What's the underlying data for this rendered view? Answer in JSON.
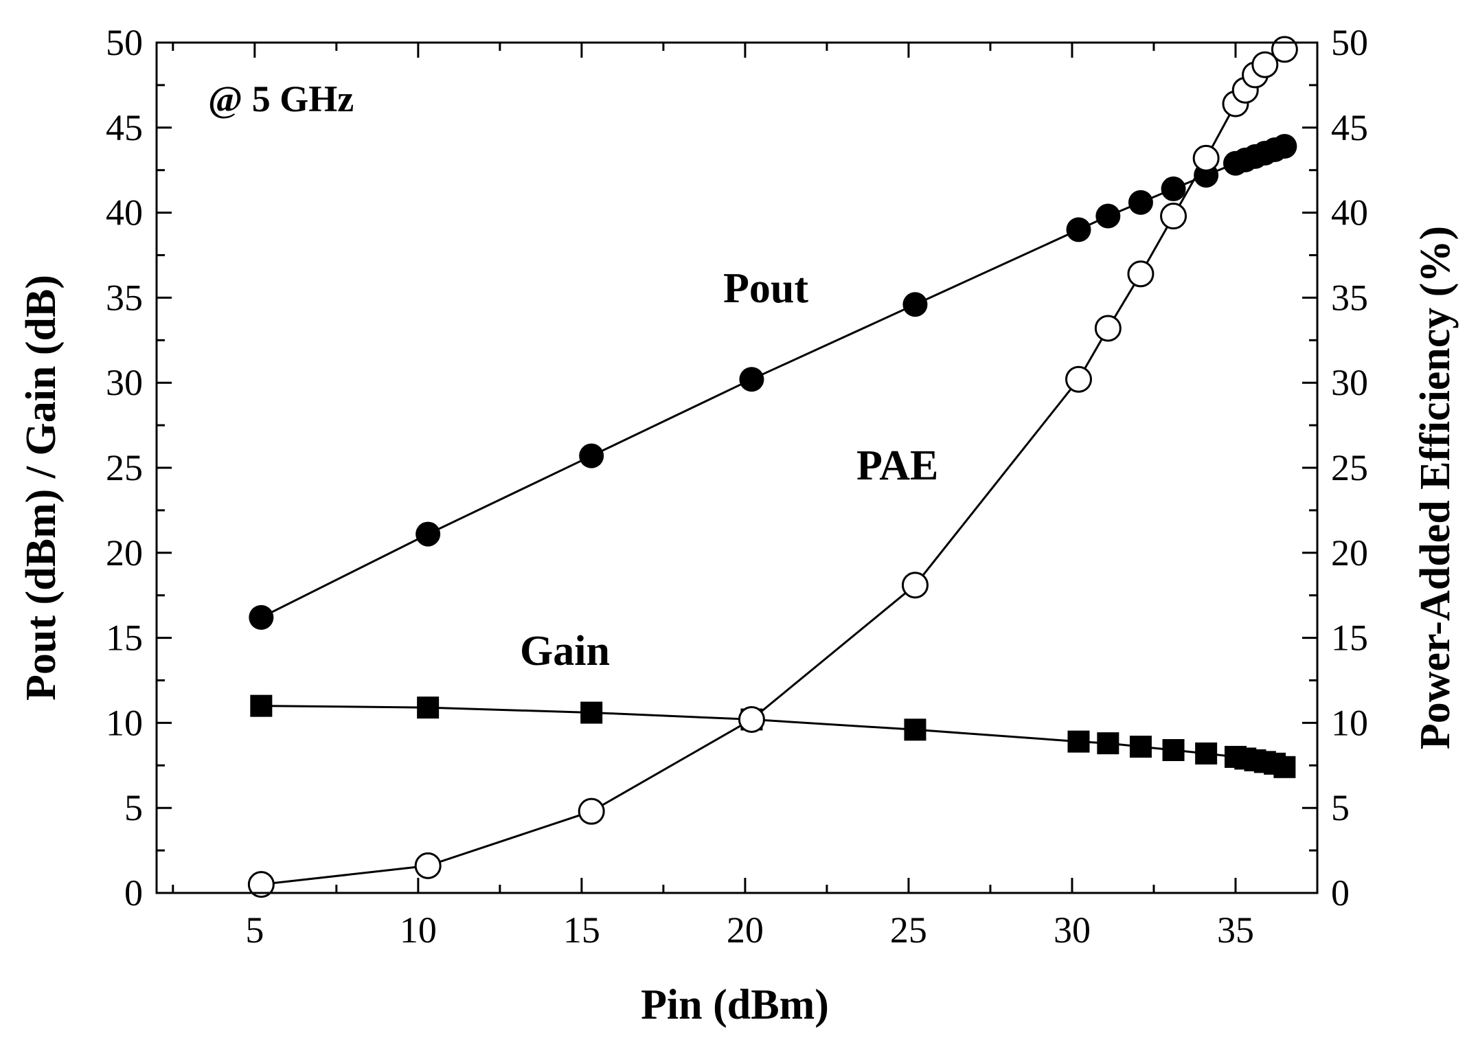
{
  "chart_data": {
    "type": "line",
    "title": "",
    "annotation": "@ 5 GHz",
    "xlabel": "Pin (dBm)",
    "ylabel": "Pout (dBm) / Gain (dB)",
    "y2label": "Power-Added Efficiency (%)",
    "xlim": [
      2,
      37.5
    ],
    "ylim": [
      0,
      50
    ],
    "y2lim": [
      0,
      50
    ],
    "xticks": [
      5,
      10,
      15,
      20,
      25,
      30,
      35
    ],
    "yticks": [
      0,
      5,
      10,
      15,
      20,
      25,
      30,
      35,
      40,
      45,
      50
    ],
    "y2ticks": [
      0,
      5,
      10,
      15,
      20,
      25,
      30,
      35,
      40,
      45,
      50
    ],
    "x_minor_step": 2.5,
    "y_minor_step": 2.5,
    "grid": false,
    "series": [
      {
        "name": "Pout",
        "label": "Pout",
        "axis": "left",
        "marker": "filled-circle",
        "x": [
          5.2,
          10.3,
          15.3,
          20.2,
          25.2,
          30.2,
          31.1,
          32.1,
          33.1,
          34.1,
          35.0,
          35.3,
          35.6,
          35.9,
          36.2,
          36.5
        ],
        "y": [
          16.2,
          21.1,
          25.7,
          30.2,
          34.6,
          39.0,
          39.8,
          40.6,
          41.4,
          42.2,
          42.9,
          43.1,
          43.3,
          43.5,
          43.7,
          43.9
        ]
      },
      {
        "name": "Gain",
        "label": "Gain",
        "axis": "left",
        "marker": "filled-square",
        "x": [
          5.2,
          10.3,
          15.3,
          20.2,
          25.2,
          30.2,
          31.1,
          32.1,
          33.1,
          34.1,
          35.0,
          35.3,
          35.6,
          35.9,
          36.2,
          36.5
        ],
        "y": [
          11.0,
          10.9,
          10.6,
          10.2,
          9.6,
          8.9,
          8.8,
          8.6,
          8.4,
          8.2,
          8.0,
          7.9,
          7.8,
          7.7,
          7.6,
          7.4
        ]
      },
      {
        "name": "PAE",
        "label": "PAE",
        "axis": "right",
        "marker": "open-circle",
        "x": [
          5.2,
          10.3,
          15.3,
          20.2,
          25.2,
          30.2,
          31.1,
          32.1,
          33.1,
          34.1,
          35.0,
          35.3,
          35.6,
          35.9,
          36.5
        ],
        "y": [
          0.5,
          1.6,
          4.8,
          10.2,
          18.1,
          30.2,
          33.2,
          36.4,
          39.8,
          43.2,
          46.4,
          47.2,
          48.1,
          48.7,
          49.6
        ]
      }
    ]
  }
}
